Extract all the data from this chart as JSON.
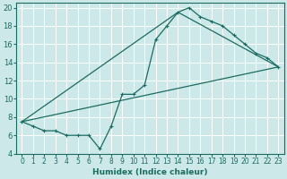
{
  "title": "",
  "xlabel": "Humidex (Indice chaleur)",
  "background_color": "#cce8e8",
  "grid_color": "#ffffff",
  "line_color": "#1a6b60",
  "xlim": [
    -0.5,
    23.5
  ],
  "ylim": [
    4,
    20.5
  ],
  "xticks": [
    0,
    1,
    2,
    3,
    4,
    5,
    6,
    7,
    8,
    9,
    10,
    11,
    12,
    13,
    14,
    15,
    16,
    17,
    18,
    19,
    20,
    21,
    22,
    23
  ],
  "yticks": [
    4,
    6,
    8,
    10,
    12,
    14,
    16,
    18,
    20
  ],
  "series1_x": [
    0,
    1,
    2,
    3,
    4,
    5,
    6,
    7,
    8,
    9,
    10,
    11,
    12,
    13,
    14,
    15,
    16,
    17,
    18,
    19,
    20,
    21,
    22,
    23
  ],
  "series1_y": [
    7.5,
    7.0,
    6.5,
    6.5,
    6.0,
    6.0,
    6.0,
    4.5,
    7.0,
    10.5,
    10.5,
    11.5,
    16.5,
    18.0,
    19.5,
    20.0,
    19.0,
    18.5,
    18.0,
    17.0,
    16.0,
    15.0,
    14.5,
    13.5
  ],
  "series2_x": [
    0,
    23
  ],
  "series2_y": [
    7.5,
    13.5
  ],
  "series3_x": [
    0,
    14,
    23
  ],
  "series3_y": [
    7.5,
    19.5,
    13.5
  ],
  "xlabel_fontsize": 6.5,
  "tick_fontsize": 5.5,
  "linewidth": 0.9,
  "marker_size": 3.0,
  "marker_ew": 0.8
}
